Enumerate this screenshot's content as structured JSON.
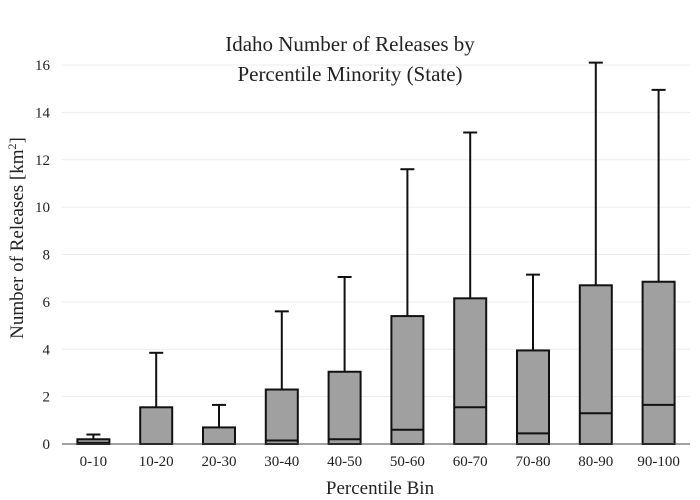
{
  "chart_data": {
    "type": "box",
    "title_lines": [
      "Idaho Number of Releases by",
      "Percentile Minority (State)"
    ],
    "xlabel": "Percentile Bin",
    "ylabel_main": "Number of Releases  [km",
    "ylabel_sup": "2",
    "ylabel_end": "]",
    "ylim": [
      0,
      16
    ],
    "yticks": [
      0,
      2,
      4,
      6,
      8,
      10,
      12,
      14,
      16
    ],
    "grid": true,
    "categories": [
      "0-10",
      "10-20",
      "20-30",
      "30-40",
      "40-50",
      "50-60",
      "60-70",
      "70-80",
      "80-90",
      "90-100"
    ],
    "boxes": [
      {
        "q1": 0,
        "median": 0.05,
        "q3": 0.2,
        "whisker_low": 0,
        "whisker_high": 0.4
      },
      {
        "q1": 0,
        "median": 0,
        "q3": 1.55,
        "whisker_low": 0,
        "whisker_high": 3.85
      },
      {
        "q1": 0,
        "median": 0,
        "q3": 0.7,
        "whisker_low": 0,
        "whisker_high": 1.65
      },
      {
        "q1": 0,
        "median": 0.15,
        "q3": 2.3,
        "whisker_low": 0,
        "whisker_high": 5.6
      },
      {
        "q1": 0,
        "median": 0.2,
        "q3": 3.05,
        "whisker_low": 0,
        "whisker_high": 7.05
      },
      {
        "q1": 0,
        "median": 0.6,
        "q3": 5.4,
        "whisker_low": 0,
        "whisker_high": 11.6
      },
      {
        "q1": 0,
        "median": 1.55,
        "q3": 6.15,
        "whisker_low": 0,
        "whisker_high": 13.15
      },
      {
        "q1": 0,
        "median": 0.45,
        "q3": 3.95,
        "whisker_low": 0,
        "whisker_high": 7.15
      },
      {
        "q1": 0,
        "median": 1.3,
        "q3": 6.7,
        "whisker_low": 0,
        "whisker_high": 16.1
      },
      {
        "q1": 0,
        "median": 1.65,
        "q3": 6.85,
        "whisker_low": 0,
        "whisker_high": 14.95
      }
    ]
  }
}
